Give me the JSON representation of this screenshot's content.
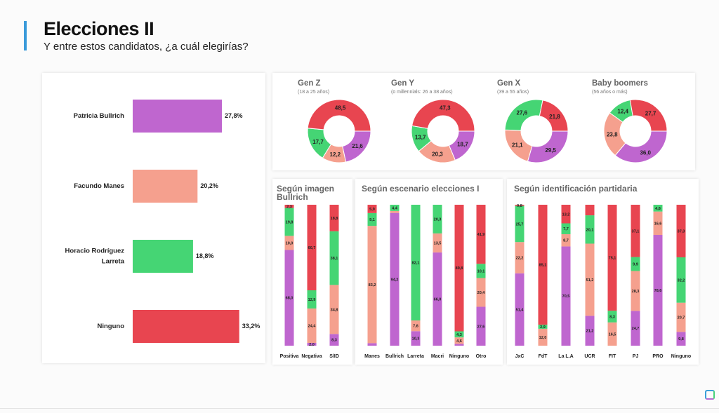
{
  "header": {
    "title": "Elecciones II",
    "subtitle": "Y entre estos candidatos, ¿a cuál elegirías?"
  },
  "colors": {
    "Bullrich": "#bf66cf",
    "Manes": "#f5a08e",
    "Larreta": "#45d574",
    "Ninguno": "#e84550",
    "accent": "#3a9ad9"
  },
  "chart_data": [
    {
      "type": "bar",
      "orientation": "horizontal",
      "title": "",
      "categories": [
        "Patricia Bullrich",
        "Facundo Manes",
        "Horacio Rodríguez Larreta",
        "Ninguno"
      ],
      "category_lines": [
        [
          "Patricia Bullrich"
        ],
        [
          "Facundo Manes"
        ],
        [
          "Horacio Rodríguez",
          "Larreta"
        ],
        [
          "Ninguno"
        ]
      ],
      "values": [
        27.8,
        20.2,
        18.8,
        33.2
      ],
      "value_labels": [
        "27,8%",
        "20,2%",
        "18,8%",
        "33,2%"
      ],
      "color_keys": [
        "Bullrich",
        "Manes",
        "Larreta",
        "Ninguno"
      ]
    },
    {
      "type": "pie",
      "subtype": "donut",
      "series_order": [
        "Bullrich",
        "Manes",
        "Larreta",
        "Ninguno"
      ],
      "donuts": [
        {
          "title": "Gen Z",
          "subtitle": "(18 a 25 años)",
          "values": [
            21.6,
            12.2,
            17.7,
            48.5
          ]
        },
        {
          "title": "Gen Y",
          "subtitle": "(o millennials: 26 a 38 años)",
          "values": [
            18.7,
            20.3,
            13.7,
            47.3
          ]
        },
        {
          "title": "Gen X",
          "subtitle": "(39 a 55 años)",
          "values": [
            29.5,
            21.1,
            27.6,
            21.8
          ]
        },
        {
          "title": "Baby boomers",
          "subtitle": "(56 años o más)",
          "values": [
            36.0,
            23.8,
            12.4,
            27.7
          ]
        }
      ]
    },
    {
      "type": "bar",
      "stacked": true,
      "title": "Según imagen Bullrich",
      "title_lines": [
        "Según imagen",
        "Bullrich"
      ],
      "series_order": [
        "Bullrich",
        "Manes",
        "Larreta",
        "Ninguno"
      ],
      "ylim": [
        0,
        100
      ],
      "categories": [
        {
          "name": "Positiva",
          "values": [
            68.0,
            10.0,
            19.8,
            2.3
          ],
          "hidden": []
        },
        {
          "name": "Negativa",
          "values": [
            2.0,
            24.4,
            12.9,
            60.7
          ],
          "hidden": []
        },
        {
          "name": "S/ID",
          "values": [
            8.3,
            34.8,
            38.1,
            18.8
          ],
          "hidden": []
        }
      ]
    },
    {
      "type": "bar",
      "stacked": true,
      "title": "Según escenario elecciones I",
      "title_lines": [
        "Según escenario elecciones I"
      ],
      "series_order": [
        "Bullrich",
        "Manes",
        "Larreta",
        "Ninguno"
      ],
      "ylim": [
        0,
        100
      ],
      "categories": [
        {
          "name": "Manes",
          "values": [
            1.8,
            83.2,
            9.1,
            5.9
          ],
          "hidden": [
            0
          ]
        },
        {
          "name": "Bullrich",
          "values": [
            94.2,
            1.4,
            4.4,
            0
          ],
          "hidden": [
            1
          ]
        },
        {
          "name": "Larreta",
          "values": [
            10.3,
            7.6,
            82.1,
            0
          ],
          "hidden": []
        },
        {
          "name": "Macri",
          "values": [
            66.0,
            13.5,
            20.3,
            0
          ],
          "hidden": []
        },
        {
          "name": "Ninguno",
          "values": [
            1.3,
            4.6,
            4.3,
            89.8
          ],
          "hidden": [
            0
          ]
        },
        {
          "name": "Otro",
          "values": [
            27.6,
            20.4,
            10.1,
            41.9
          ],
          "hidden": []
        }
      ]
    },
    {
      "type": "bar",
      "stacked": true,
      "title": "Según identificación partidaria",
      "title_lines": [
        "Según identificación partidaria"
      ],
      "series_order": [
        "Bullrich",
        "Manes",
        "Larreta",
        "Ninguno"
      ],
      "ylim": [
        0,
        100
      ],
      "categories": [
        {
          "name": "JxC",
          "values": [
            51.4,
            22.2,
            25.7,
            0.8
          ],
          "hidden": []
        },
        {
          "name": "FdT",
          "values": [
            0,
            12.0,
            2.9,
            85.1
          ],
          "hidden": []
        },
        {
          "name": "La L.A",
          "values": [
            70.5,
            8.7,
            7.7,
            13.2
          ],
          "hidden": []
        },
        {
          "name": "UCR",
          "values": [
            21.2,
            51.2,
            20.1,
            7.5
          ],
          "hidden": [
            3
          ]
        },
        {
          "name": "FIT",
          "values": [
            0,
            16.5,
            8.3,
            75.1
          ],
          "hidden": []
        },
        {
          "name": "PJ",
          "values": [
            24.7,
            28.3,
            9.9,
            37.1
          ],
          "hidden": []
        },
        {
          "name": "PRO",
          "values": [
            78.6,
            16.6,
            4.8,
            0
          ],
          "hidden": []
        },
        {
          "name": "Ninguno",
          "values": [
            9.8,
            20.7,
            32.2,
            37.3
          ],
          "hidden": []
        }
      ]
    }
  ]
}
